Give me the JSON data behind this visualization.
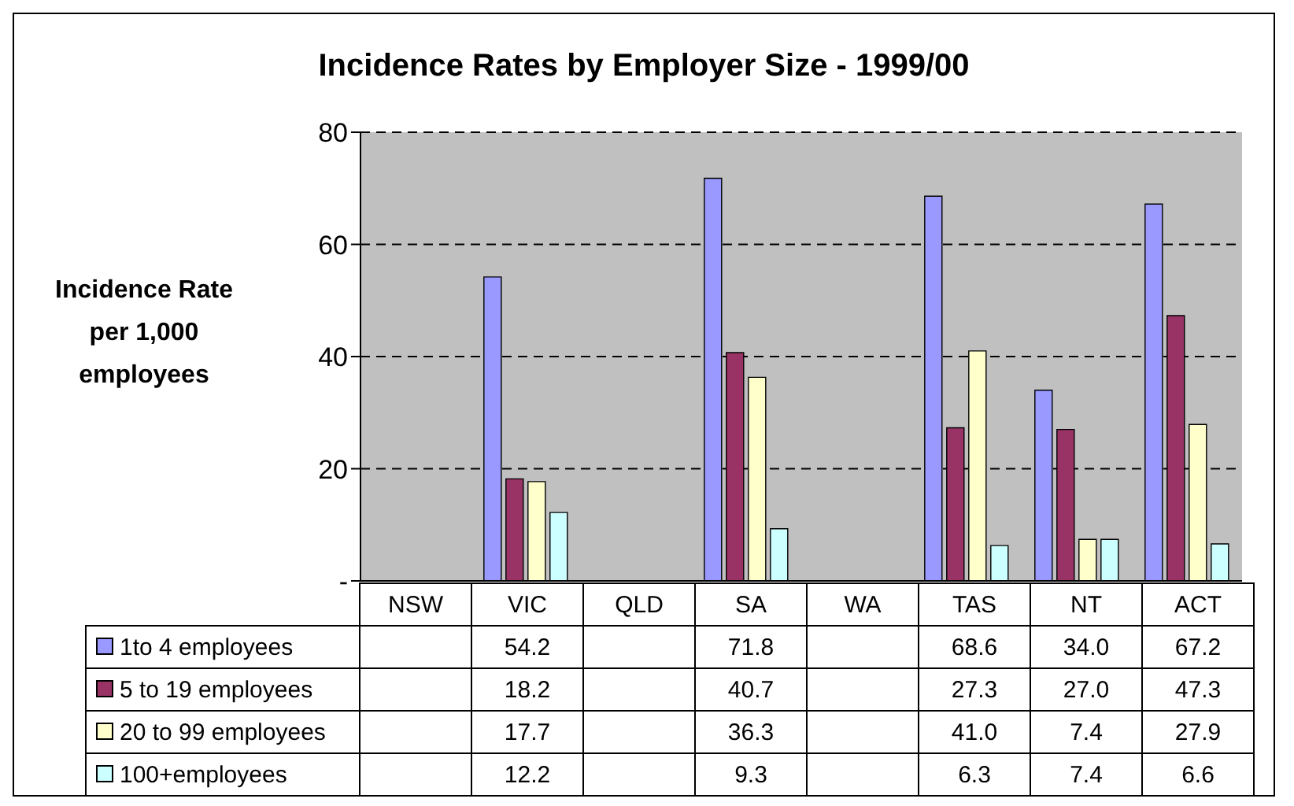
{
  "chart_data": {
    "type": "bar",
    "title": "Incidence Rates by Employer Size - 1999/00",
    "ylabel": "Incidence Rate per 1,000 employees",
    "categories": [
      "NSW",
      "VIC",
      "QLD",
      "SA",
      "WA",
      "TAS",
      "NT",
      "ACT"
    ],
    "series": [
      {
        "name": "1to 4 employees",
        "color": "#9999ff",
        "values": [
          null,
          54.2,
          null,
          71.8,
          null,
          68.6,
          34.0,
          67.2
        ],
        "value_labels": [
          null,
          "54.2",
          null,
          "71.8",
          null,
          "68.6",
          "34.0",
          "67.2"
        ]
      },
      {
        "name": "5 to 19 employees",
        "color": "#993366",
        "values": [
          null,
          18.2,
          null,
          40.7,
          null,
          27.3,
          27.0,
          47.3
        ],
        "value_labels": [
          null,
          "18.2",
          null,
          "40.7",
          null,
          "27.3",
          "27.0",
          "47.3"
        ]
      },
      {
        "name": "20 to 99 employees",
        "color": "#ffffcc",
        "values": [
          null,
          17.7,
          null,
          36.3,
          null,
          41.0,
          7.4,
          27.9
        ],
        "value_labels": [
          null,
          "17.7",
          null,
          "36.3",
          null,
          "41.0",
          "7.4",
          "27.9"
        ]
      },
      {
        "name": "100+employees",
        "color": "#ccffff",
        "values": [
          null,
          12.2,
          null,
          9.3,
          null,
          6.3,
          7.4,
          6.6
        ],
        "value_labels": [
          null,
          "12.2",
          null,
          "9.3",
          null,
          "6.3",
          "7.4",
          "6.6"
        ]
      }
    ],
    "ylim": [
      0,
      80
    ],
    "yticks": [
      {
        "value": 0,
        "label": "-"
      },
      20,
      40,
      60,
      80
    ],
    "grid": "y",
    "legend": "bottom"
  }
}
